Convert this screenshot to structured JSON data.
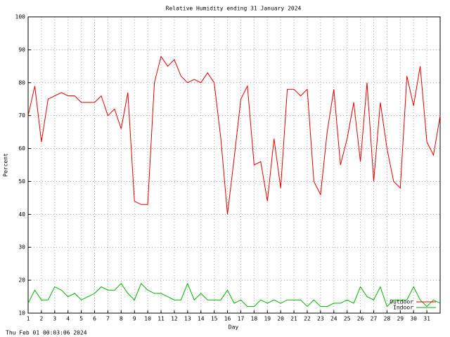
{
  "chart_data": {
    "type": "line",
    "title": "Relative Humidity ending 31 January 2024",
    "x_label": "Day",
    "y_label": "Percent",
    "footer": "Thu Feb 01 00:03:06 2024",
    "xlim": [
      1,
      32
    ],
    "ylim": [
      10,
      100
    ],
    "xticks": [
      1,
      2,
      3,
      4,
      5,
      6,
      7,
      8,
      9,
      10,
      11,
      12,
      13,
      14,
      15,
      16,
      17,
      18,
      19,
      20,
      21,
      22,
      23,
      24,
      25,
      26,
      27,
      28,
      29,
      30,
      31
    ],
    "yticks": [
      10,
      20,
      30,
      40,
      50,
      60,
      70,
      80,
      90,
      100
    ],
    "grid": true,
    "legend": "lower right",
    "x": [
      1,
      1.5,
      2,
      2.5,
      3,
      3.5,
      4,
      4.5,
      5,
      5.5,
      6,
      6.5,
      7,
      7.5,
      8,
      8.5,
      9,
      9.5,
      10,
      10.5,
      11,
      11.5,
      12,
      12.5,
      13,
      13.5,
      14,
      14.5,
      15,
      15.5,
      16,
      16.5,
      17,
      17.5,
      18,
      18.5,
      19,
      19.5,
      20,
      20.5,
      21,
      21.5,
      22,
      22.5,
      23,
      23.5,
      24,
      24.5,
      25,
      25.5,
      26,
      26.5,
      27,
      27.5,
      28,
      28.5,
      29,
      29.5,
      30,
      30.5,
      31,
      31.5,
      32
    ],
    "series": [
      {
        "name": "Outdoor",
        "color": "#e00000",
        "values": [
          70,
          79,
          62,
          75,
          76,
          77,
          76,
          76,
          74,
          74,
          74,
          76,
          70,
          72,
          66,
          77,
          44,
          43,
          43,
          80,
          88,
          85,
          87,
          82,
          80,
          81,
          80,
          83,
          80,
          63,
          40,
          57,
          75,
          79,
          55,
          56,
          44,
          63,
          48,
          78,
          78,
          76,
          78,
          50,
          46,
          65,
          78,
          55,
          63,
          74,
          56,
          80,
          50,
          74,
          60,
          50,
          48,
          82,
          73,
          85,
          62,
          58,
          70
        ]
      },
      {
        "name": "Indoor",
        "color": "#00b000",
        "values": [
          13,
          17,
          14,
          14,
          18,
          17,
          15,
          16,
          14,
          15,
          16,
          18,
          17,
          17,
          19,
          16,
          14,
          19,
          17,
          16,
          16,
          15,
          14,
          14,
          19,
          14,
          16,
          14,
          14,
          14,
          17,
          13,
          14,
          12,
          12,
          14,
          13,
          14,
          13,
          14,
          14,
          14,
          12,
          14,
          12,
          12,
          13,
          13,
          14,
          13,
          18,
          15,
          14,
          18,
          12,
          14,
          14,
          14,
          18,
          14,
          12,
          14,
          13
        ]
      }
    ]
  }
}
